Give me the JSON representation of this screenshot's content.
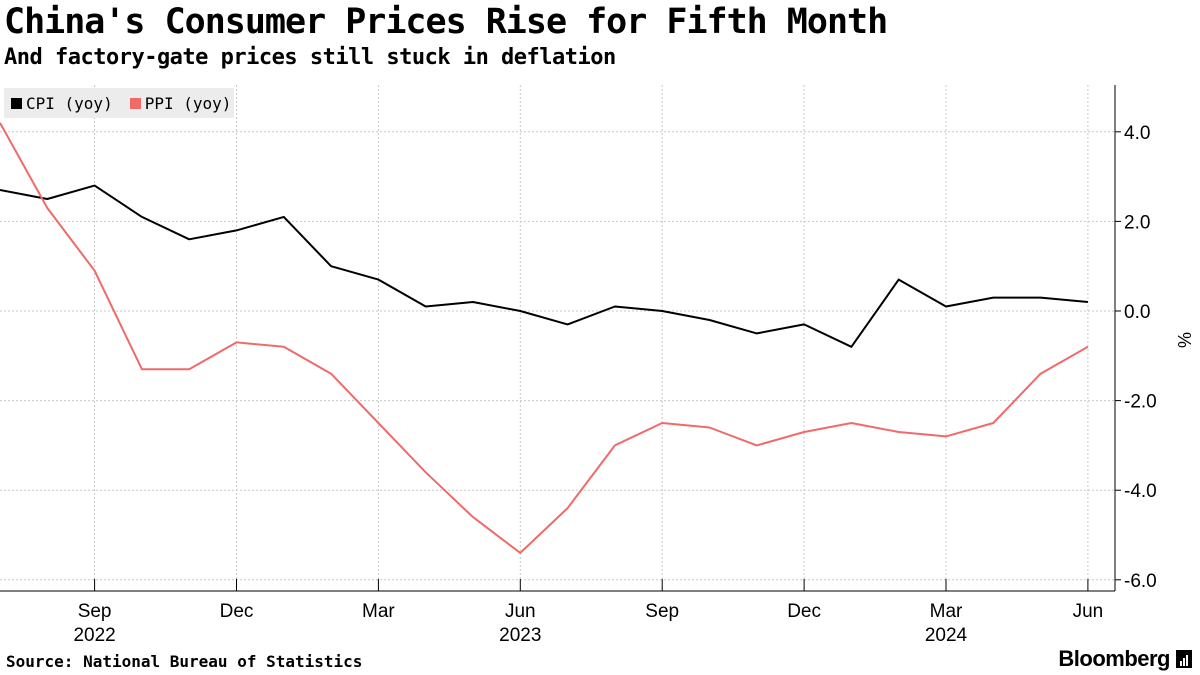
{
  "title": "China's Consumer Prices Rise for Fifth Month",
  "subtitle": "And factory-gate prices still stuck in deflation",
  "legend": [
    {
      "label": "CPI (yoy)",
      "color": "#000000"
    },
    {
      "label": "PPI (yoy)",
      "color": "#f06a6a"
    }
  ],
  "source": "Source: National Bureau of Statistics",
  "brand": "Bloomberg",
  "chart_data": {
    "type": "line",
    "title": "China's Consumer Prices Rise for Fifth Month",
    "ylabel": "%",
    "xlabel": "",
    "ylim": [
      -6.0,
      5.0
    ],
    "y_ticks": [
      4.0,
      2.0,
      0.0,
      -2.0,
      -4.0,
      -6.0
    ],
    "y_tick_labels": [
      "4.0",
      "2.0",
      "0.0",
      "-2.0",
      "-4.0",
      "-6.0"
    ],
    "x": [
      "2022-07",
      "2022-08",
      "2022-09",
      "2022-10",
      "2022-11",
      "2022-12",
      "2023-01",
      "2023-02",
      "2023-03",
      "2023-04",
      "2023-05",
      "2023-06",
      "2023-07",
      "2023-08",
      "2023-09",
      "2023-10",
      "2023-11",
      "2023-12",
      "2024-01",
      "2024-02",
      "2024-03",
      "2024-04",
      "2024-05",
      "2024-06"
    ],
    "x_ticks": [
      {
        "index": 2,
        "label": "Sep",
        "year": "2022"
      },
      {
        "index": 5,
        "label": "Dec",
        "year": ""
      },
      {
        "index": 8,
        "label": "Mar",
        "year": ""
      },
      {
        "index": 11,
        "label": "Jun",
        "year": "2023"
      },
      {
        "index": 14,
        "label": "Sep",
        "year": ""
      },
      {
        "index": 17,
        "label": "Dec",
        "year": ""
      },
      {
        "index": 20,
        "label": "Mar",
        "year": "2024"
      },
      {
        "index": 23,
        "label": "Jun",
        "year": ""
      }
    ],
    "series": [
      {
        "name": "CPI (yoy)",
        "color": "#000000",
        "values": [
          2.7,
          2.5,
          2.8,
          2.1,
          1.6,
          1.8,
          2.1,
          1.0,
          0.7,
          0.1,
          0.2,
          0.0,
          -0.3,
          0.1,
          0.0,
          -0.2,
          -0.5,
          -0.3,
          -0.8,
          0.7,
          0.1,
          0.3,
          0.3,
          0.2
        ]
      },
      {
        "name": "PPI (yoy)",
        "color": "#f06a6a",
        "values": [
          4.2,
          2.3,
          0.9,
          -1.3,
          -1.3,
          -0.7,
          -0.8,
          -1.4,
          -2.5,
          -3.6,
          -4.6,
          -5.4,
          -4.4,
          -3.0,
          -2.5,
          -2.6,
          -3.0,
          -2.7,
          -2.5,
          -2.7,
          -2.8,
          -2.5,
          -1.4,
          -0.8
        ]
      }
    ]
  }
}
